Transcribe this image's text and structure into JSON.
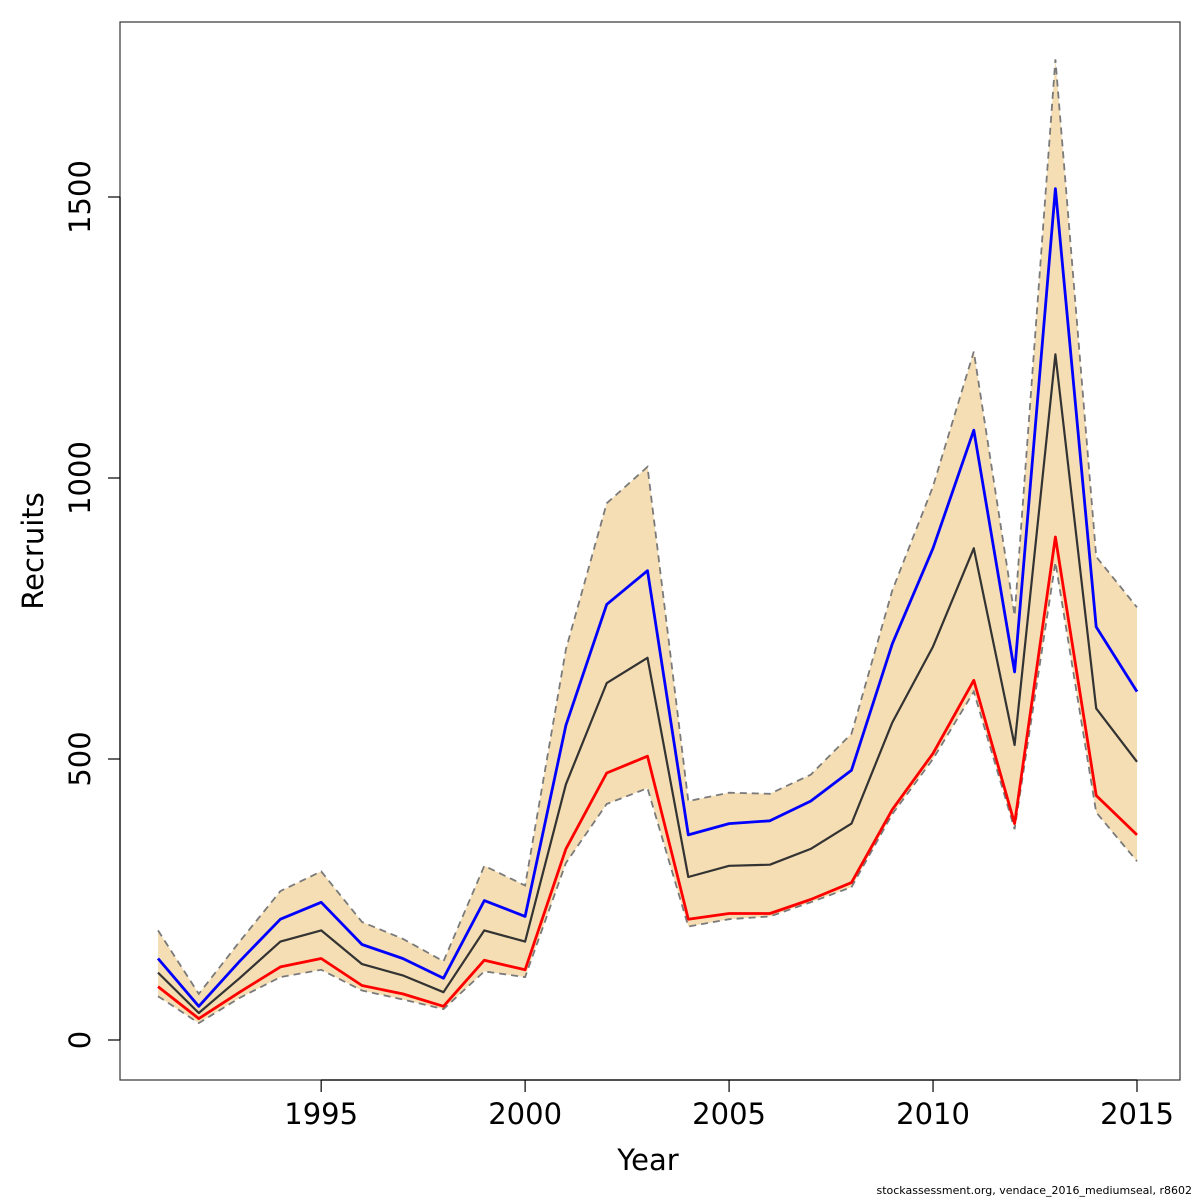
{
  "chart_data": {
    "type": "line",
    "title": "",
    "xlabel": "Year",
    "ylabel": "Recruits",
    "xlim": [
      1991,
      2015
    ],
    "ylim": [
      0,
      1750
    ],
    "x_ticks": [
      1995,
      2000,
      2005,
      2010,
      2015
    ],
    "y_ticks": [
      0,
      500,
      1000,
      1500
    ],
    "grid": false,
    "legend": "none",
    "x": [
      1991,
      1992,
      1993,
      1994,
      1995,
      1996,
      1997,
      1998,
      1999,
      2000,
      2001,
      2002,
      2003,
      2004,
      2005,
      2006,
      2007,
      2008,
      2009,
      2010,
      2011,
      2012,
      2013,
      2014,
      2015
    ],
    "series": [
      {
        "color": "#0000ff",
        "style": "solid",
        "values": [
          145,
          60,
          140,
          215,
          245,
          170,
          145,
          110,
          248,
          220,
          560,
          775,
          835,
          365,
          385,
          390,
          425,
          480,
          705,
          875,
          1085,
          655,
          1515,
          735,
          620
        ]
      },
      {
        "color": "#333333",
        "style": "solid",
        "values": [
          120,
          48,
          110,
          175,
          195,
          135,
          115,
          85,
          195,
          175,
          455,
          635,
          680,
          290,
          310,
          312,
          340,
          385,
          565,
          700,
          875,
          525,
          1220,
          590,
          495
        ]
      },
      {
        "color": "#ff0000",
        "style": "solid",
        "values": [
          95,
          38,
          85,
          130,
          145,
          97,
          82,
          60,
          142,
          125,
          340,
          475,
          505,
          215,
          225,
          225,
          250,
          280,
          410,
          510,
          640,
          385,
          895,
          435,
          365
        ]
      }
    ],
    "band": {
      "fill": "#f5deb3",
      "edge_color": "#7a7a7a",
      "upper": [
        195,
        82,
        175,
        265,
        300,
        210,
        180,
        140,
        310,
        275,
        695,
        955,
        1020,
        425,
        440,
        438,
        472,
        545,
        800,
        985,
        1225,
        755,
        1745,
        860,
        770
      ],
      "lower": [
        78,
        30,
        75,
        112,
        125,
        88,
        72,
        55,
        122,
        112,
        315,
        420,
        448,
        202,
        215,
        220,
        245,
        272,
        402,
        500,
        620,
        375,
        850,
        405,
        318
      ]
    }
  },
  "footer": "stockassessment.org, vendace_2016_mediumseal, r8602"
}
